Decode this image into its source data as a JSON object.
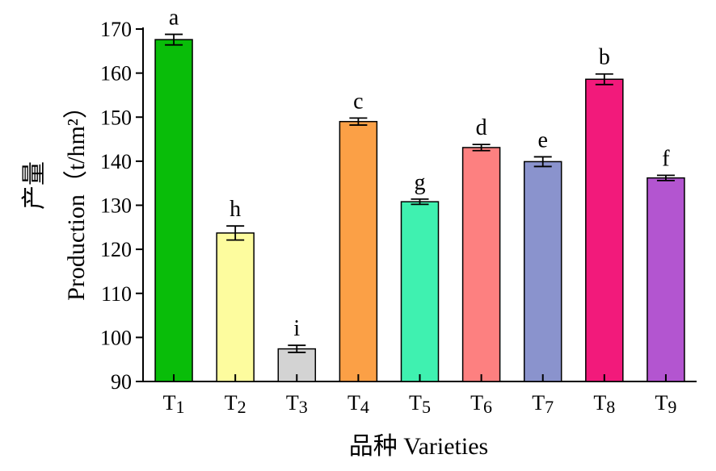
{
  "chart_data": {
    "type": "bar",
    "categories": [
      "T1",
      "T2",
      "T3",
      "T4",
      "T5",
      "T6",
      "T7",
      "T8",
      "T9"
    ],
    "values": [
      167.6,
      123.7,
      97.4,
      149.0,
      130.8,
      143.1,
      139.9,
      158.6,
      136.2
    ],
    "errors": [
      1.2,
      1.6,
      0.8,
      0.8,
      0.6,
      0.7,
      1.1,
      1.2,
      0.6
    ],
    "significance_labels": [
      "a",
      "h",
      "i",
      "c",
      "g",
      "d",
      "e",
      "b",
      "f"
    ],
    "colors": [
      "#09bd09",
      "#fdfc9e",
      "#d3d3d3",
      "#fba046",
      "#3ff1b0",
      "#fd8080",
      "#8a93cd",
      "#f21a7b",
      "#b355d0"
    ],
    "ylim": [
      90,
      170
    ],
    "yticks": [
      90,
      100,
      110,
      120,
      130,
      140,
      150,
      160,
      170
    ],
    "xlabel": "品种 Varieties",
    "ylabel_cn": "产量",
    "ylabel_en": "Production（t/hm²）",
    "grid": false,
    "legend": "none"
  }
}
